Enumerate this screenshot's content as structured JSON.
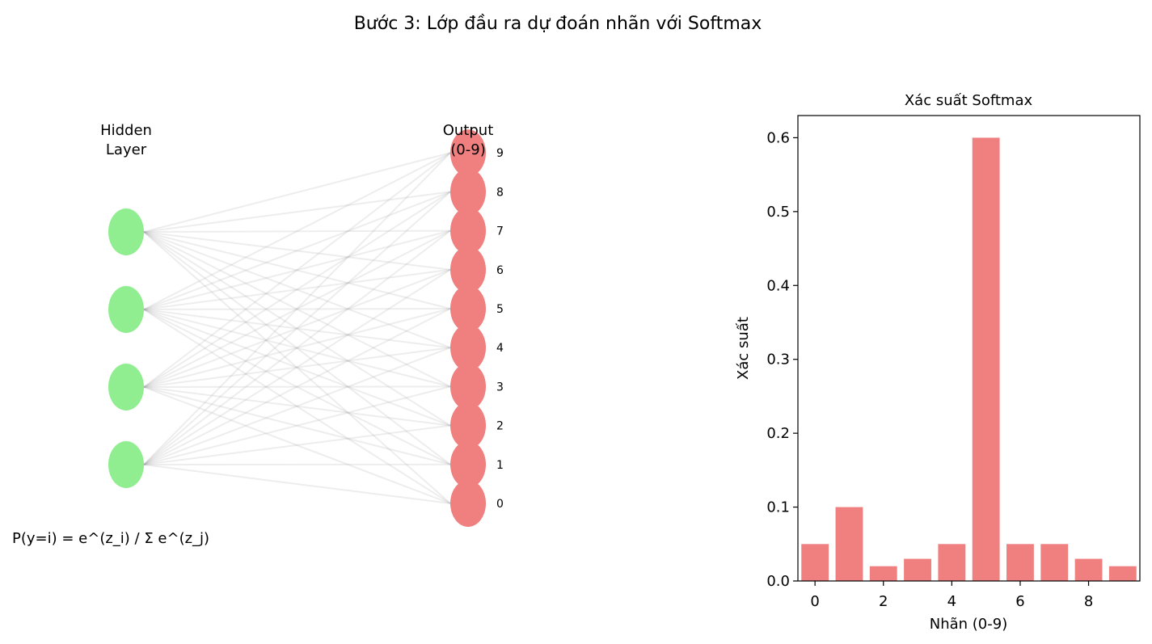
{
  "suptitle": "Bước 3: Lớp đầu ra dự đoán nhãn với Softmax",
  "network": {
    "hidden_label": "Hidden\nLayer",
    "output_label": "Output\n(0-9)",
    "hidden_count": 4,
    "output_labels": [
      "0",
      "1",
      "2",
      "3",
      "4",
      "5",
      "6",
      "7",
      "8",
      "9"
    ],
    "formula": "P(y=i) = e^(z_i) / Σ e^(z_j)",
    "colors": {
      "hidden": "#90ee90",
      "output": "#f08080",
      "edge": "#999999"
    }
  },
  "chart_data": {
    "type": "bar",
    "title": "Xác suất Softmax",
    "xlabel": "Nhãn (0-9)",
    "ylabel": "Xác suất",
    "categories": [
      0,
      1,
      2,
      3,
      4,
      5,
      6,
      7,
      8,
      9
    ],
    "values": [
      0.05,
      0.1,
      0.02,
      0.03,
      0.05,
      0.6,
      0.05,
      0.05,
      0.03,
      0.02
    ],
    "xticks": [
      "0",
      "2",
      "4",
      "6",
      "8"
    ],
    "yticks": [
      "0.0",
      "0.1",
      "0.2",
      "0.3",
      "0.4",
      "0.5",
      "0.6"
    ],
    "ylim": [
      0,
      0.63
    ],
    "xlim": [
      -0.5,
      9.5
    ],
    "bar_color": "#f08080",
    "grid": false,
    "legend": "none"
  }
}
